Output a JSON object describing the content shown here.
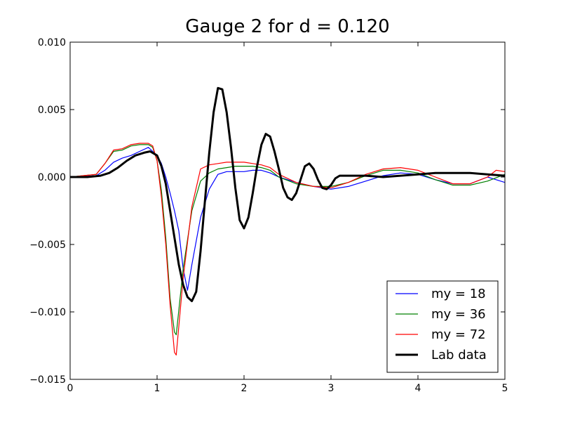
{
  "chart_data": {
    "type": "line",
    "title": "Gauge 2 for d = 0.120",
    "xlabel": "",
    "ylabel": "",
    "xlim": [
      0,
      5
    ],
    "ylim": [
      -0.015,
      0.01
    ],
    "xticks": [
      0,
      1,
      2,
      3,
      4,
      5
    ],
    "xtick_labels": [
      "0",
      "1",
      "2",
      "3",
      "4",
      "5"
    ],
    "yticks": [
      0.01,
      0.005,
      0.0,
      -0.005,
      -0.01,
      -0.015
    ],
    "ytick_labels": [
      "0.010",
      "0.005",
      "0.000",
      "−0.005",
      "−0.010",
      "−0.015"
    ],
    "grid": false,
    "legend_position": "lower-right",
    "series": [
      {
        "name": "my = 18",
        "color": "#0000ff",
        "style": "thin",
        "x": [
          0,
          0.3,
          0.4,
          0.5,
          0.6,
          0.7,
          0.8,
          0.9,
          1.0,
          1.05,
          1.1,
          1.15,
          1.2,
          1.25,
          1.3,
          1.35,
          1.4,
          1.5,
          1.6,
          1.7,
          1.8,
          1.9,
          2.0,
          2.1,
          2.2,
          2.3,
          2.4,
          2.6,
          2.8,
          3.0,
          3.2,
          3.4,
          3.6,
          3.8,
          4.0,
          4.2,
          4.4,
          4.6,
          4.8,
          5.0
        ],
        "y": [
          0.0,
          0.0001,
          0.0005,
          0.0011,
          0.0014,
          0.0016,
          0.0019,
          0.0022,
          0.0016,
          0.001,
          0.0,
          -0.0012,
          -0.0025,
          -0.004,
          -0.0068,
          -0.0084,
          -0.0065,
          -0.003,
          -0.0009,
          0.0002,
          0.0004,
          0.0004,
          0.0004,
          0.0005,
          0.0005,
          0.0003,
          0.0,
          -0.0004,
          -0.0007,
          -0.0009,
          -0.0007,
          -0.0003,
          0.0001,
          0.0003,
          0.0002,
          -0.0002,
          -0.0005,
          -0.0005,
          0.0,
          -0.0004
        ]
      },
      {
        "name": "my = 36",
        "color": "#008000",
        "style": "thin",
        "x": [
          0,
          0.3,
          0.4,
          0.5,
          0.6,
          0.7,
          0.8,
          0.9,
          0.95,
          1.0,
          1.05,
          1.1,
          1.15,
          1.2,
          1.22,
          1.3,
          1.4,
          1.5,
          1.6,
          1.7,
          1.8,
          1.9,
          2.0,
          2.1,
          2.2,
          2.3,
          2.4,
          2.6,
          2.8,
          3.0,
          3.2,
          3.4,
          3.6,
          3.8,
          4.0,
          4.2,
          4.4,
          4.6,
          4.8,
          5.0
        ],
        "y": [
          0.0,
          0.0002,
          0.001,
          0.0019,
          0.002,
          0.0023,
          0.0024,
          0.0024,
          0.0022,
          0.0012,
          -0.001,
          -0.0045,
          -0.009,
          -0.0115,
          -0.0117,
          -0.0068,
          -0.0025,
          -0.0003,
          0.0003,
          0.0006,
          0.0007,
          0.0008,
          0.0008,
          0.0008,
          0.0007,
          0.0005,
          0.0,
          -0.0005,
          -0.0007,
          -0.0007,
          -0.0004,
          0.0001,
          0.0005,
          0.0005,
          0.0003,
          -0.0002,
          -0.0006,
          -0.0006,
          -0.0003,
          0.0002
        ]
      },
      {
        "name": "my = 72",
        "color": "#ff0000",
        "style": "thin",
        "x": [
          0,
          0.3,
          0.4,
          0.5,
          0.6,
          0.7,
          0.8,
          0.9,
          0.95,
          1.0,
          1.05,
          1.1,
          1.15,
          1.2,
          1.22,
          1.3,
          1.4,
          1.5,
          1.6,
          1.7,
          1.8,
          1.9,
          2.0,
          2.1,
          2.2,
          2.3,
          2.4,
          2.6,
          2.8,
          3.0,
          3.2,
          3.4,
          3.6,
          3.8,
          4.0,
          4.2,
          4.4,
          4.6,
          4.8,
          4.9,
          5.0
        ],
        "y": [
          0.0,
          0.0002,
          0.001,
          0.002,
          0.0021,
          0.0024,
          0.0025,
          0.0025,
          0.0023,
          0.0012,
          -0.0015,
          -0.005,
          -0.0095,
          -0.013,
          -0.0132,
          -0.0075,
          -0.0022,
          0.0006,
          0.0009,
          0.001,
          0.0011,
          0.0011,
          0.0011,
          0.001,
          0.0009,
          0.0007,
          0.0002,
          -0.0004,
          -0.0007,
          -0.0008,
          -0.0004,
          0.0002,
          0.0006,
          0.0007,
          0.0005,
          0.0,
          -0.0005,
          -0.0005,
          0.0,
          0.0005,
          0.0004
        ]
      },
      {
        "name": "Lab data",
        "color": "#000000",
        "style": "thick",
        "x": [
          0,
          0.2,
          0.35,
          0.45,
          0.55,
          0.65,
          0.75,
          0.85,
          0.92,
          1.0,
          1.05,
          1.1,
          1.15,
          1.2,
          1.25,
          1.3,
          1.35,
          1.4,
          1.45,
          1.5,
          1.55,
          1.6,
          1.65,
          1.7,
          1.75,
          1.8,
          1.85,
          1.9,
          1.95,
          2.0,
          2.05,
          2.1,
          2.15,
          2.2,
          2.25,
          2.3,
          2.35,
          2.4,
          2.45,
          2.5,
          2.55,
          2.6,
          2.65,
          2.7,
          2.75,
          2.8,
          2.85,
          2.9,
          2.95,
          3.0,
          3.05,
          3.1,
          3.2,
          3.4,
          3.6,
          3.8,
          4.0,
          4.2,
          4.4,
          4.6,
          4.8,
          5.0
        ],
        "y": [
          0.0,
          0.0,
          0.0001,
          0.0003,
          0.0007,
          0.0012,
          0.0016,
          0.0018,
          0.0019,
          0.0016,
          0.0008,
          -0.0005,
          -0.0025,
          -0.0045,
          -0.0065,
          -0.008,
          -0.0089,
          -0.0092,
          -0.0085,
          -0.0055,
          -0.0018,
          0.0018,
          0.0048,
          0.0066,
          0.0065,
          0.0048,
          0.0022,
          -0.0008,
          -0.0032,
          -0.0038,
          -0.003,
          -0.0012,
          0.0008,
          0.0024,
          0.0032,
          0.003,
          0.0019,
          0.0006,
          -0.0008,
          -0.0015,
          -0.0017,
          -0.0012,
          -0.0002,
          0.0008,
          0.001,
          0.0006,
          -0.0002,
          -0.0008,
          -0.0009,
          -0.0006,
          -0.0001,
          0.0001,
          0.0001,
          0.0001,
          0.0,
          0.0001,
          0.0002,
          0.0003,
          0.0003,
          0.0003,
          0.0002,
          0.0001
        ]
      }
    ]
  }
}
